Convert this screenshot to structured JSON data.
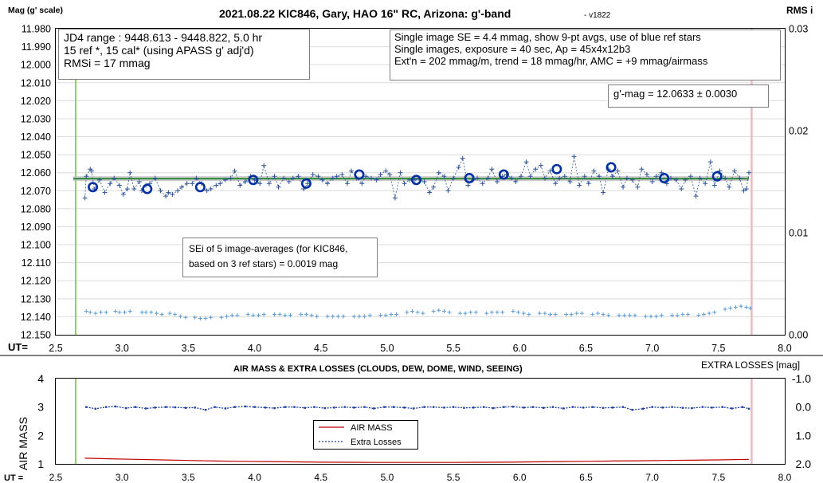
{
  "chart_data": [
    {
      "type": "scatter",
      "title": "2021.08.22 KIC846, Gary, HAO 16\" RC, Arizona: g'-band",
      "version_tag": "- v1822",
      "ylabel": "Mag (g' scale)",
      "y2label": "RMS i",
      "xlabel": "UT=",
      "xlim": [
        2.5,
        8.0
      ],
      "ylim": [
        12.15,
        11.98
      ],
      "y2lim": [
        0.0,
        0.03
      ],
      "x_ticks": [
        "2.5",
        "3.0",
        "3.5",
        "4.0",
        "4.5",
        "5.0",
        "5.5",
        "6.0",
        "6.5",
        "7.0",
        "7.5",
        "8.0"
      ],
      "y_ticks": [
        "11.980",
        "11.990",
        "12.000",
        "12.010",
        "12.020",
        "12.030",
        "12.040",
        "12.050",
        "12.060",
        "12.070",
        "12.080",
        "12.090",
        "12.100",
        "12.110",
        "12.120",
        "12.130",
        "12.140",
        "12.150"
      ],
      "y2_ticks": [
        "0.03",
        "0.02",
        "0.01",
        "0.00"
      ],
      "grid": true,
      "green_line_x": 2.65,
      "pink_line_x": 7.75,
      "fit_mag": 12.0633,
      "info_left": [
        "JD4 range : 9448.613 - 9448.822,  5.0  hr",
        "15 ref *, 15 cal* (using APASS g' adj'd)",
        "RMSi = 17 mmag"
      ],
      "info_right": [
        "Single image SE = 4.4 mmag, show  9-pt avgs, use of blue ref stars",
        "Single images, exposure = 40 sec, Ap = 45x4x12b3",
        "Ext'n = 202 mmag/m, trend = 18 mmag/hr, AMC = +9 mmag/airmass"
      ],
      "gmag_label": "g'-mag = 12.0633 ± 0.0030",
      "sei_note": [
        "SEi of 5 image-averages (for KIC846,",
        "based on 3 ref stars) = 0.0019 mag"
      ],
      "series": [
        {
          "name": "9-pt avgs",
          "x": [
            2.78,
            3.19,
            3.59,
            3.99,
            4.39,
            4.79,
            5.22,
            5.62,
            5.88,
            6.28,
            6.69,
            7.09,
            7.49
          ],
          "y": [
            12.068,
            12.069,
            12.068,
            12.064,
            12.066,
            12.061,
            12.064,
            12.063,
            12.061,
            12.058,
            12.057,
            12.063,
            12.062
          ]
        },
        {
          "name": "single images",
          "x": [
            2.72,
            2.73,
            2.76,
            2.77,
            2.79,
            2.83,
            2.87,
            2.91,
            2.94,
            2.98,
            3.01,
            3.04,
            3.06,
            3.09,
            3.13,
            3.15,
            3.18,
            3.21,
            3.25,
            3.29,
            3.33,
            3.35,
            3.38,
            3.42,
            3.45,
            3.49,
            3.53,
            3.56,
            3.6,
            3.64,
            3.67,
            3.71,
            3.74,
            3.78,
            3.82,
            3.85,
            3.89,
            3.93,
            3.97,
            4.0,
            4.04,
            4.07,
            4.11,
            4.15,
            4.18,
            4.22,
            4.26,
            4.29,
            4.33,
            4.37,
            4.4,
            4.44,
            4.48,
            4.51,
            4.55,
            4.59,
            4.62,
            4.66,
            4.7,
            4.73,
            4.77,
            4.81,
            4.84,
            4.88,
            4.92,
            4.95,
            4.99,
            5.02,
            5.06,
            5.1,
            5.13,
            5.17,
            5.21,
            5.24,
            5.28,
            5.32,
            5.35,
            5.39,
            5.43,
            5.46,
            5.5,
            5.54,
            5.57,
            5.61,
            5.65,
            5.68,
            5.72,
            5.76,
            5.79,
            5.83,
            5.87,
            5.9,
            5.94,
            5.97,
            6.01,
            6.05,
            6.08,
            6.12,
            6.16,
            6.19,
            6.23,
            6.27,
            6.3,
            6.34,
            6.38,
            6.41,
            6.45,
            6.49,
            6.52,
            6.56,
            6.6,
            6.63,
            6.67,
            6.7,
            6.74,
            6.78,
            6.81,
            6.85,
            6.89,
            6.92,
            6.96,
            7.0,
            7.03,
            7.07,
            7.11,
            7.14,
            7.18,
            7.22,
            7.25,
            7.29,
            7.33,
            7.36,
            7.4,
            7.44,
            7.47,
            7.51,
            7.55,
            7.58,
            7.62,
            7.66,
            7.69,
            7.71,
            7.73
          ],
          "y": [
            12.074,
            12.062,
            12.058,
            12.059,
            12.069,
            12.064,
            12.071,
            12.066,
            12.063,
            12.067,
            12.072,
            12.069,
            12.06,
            12.069,
            12.065,
            12.07,
            12.067,
            12.066,
            12.063,
            12.07,
            12.073,
            12.071,
            12.072,
            12.07,
            12.068,
            12.066,
            12.066,
            12.063,
            12.066,
            12.07,
            12.069,
            12.067,
            12.066,
            12.064,
            12.063,
            12.059,
            12.067,
            12.065,
            12.062,
            12.064,
            12.066,
            12.056,
            12.066,
            12.062,
            12.068,
            12.063,
            12.065,
            12.063,
            12.062,
            12.069,
            12.066,
            12.061,
            12.062,
            12.064,
            12.066,
            12.063,
            12.062,
            12.061,
            12.066,
            12.059,
            12.063,
            12.066,
            12.062,
            12.063,
            12.064,
            12.061,
            12.059,
            12.061,
            12.074,
            12.06,
            12.066,
            12.064,
            12.064,
            12.063,
            12.065,
            12.071,
            12.068,
            12.06,
            12.062,
            12.07,
            12.063,
            12.057,
            12.052,
            12.067,
            12.064,
            12.063,
            12.066,
            12.063,
            12.058,
            12.065,
            12.062,
            12.061,
            12.063,
            12.065,
            12.062,
            12.054,
            12.062,
            12.058,
            12.056,
            12.063,
            12.059,
            12.066,
            12.063,
            12.062,
            12.065,
            12.051,
            12.067,
            12.062,
            12.066,
            12.059,
            12.062,
            12.071,
            12.058,
            12.062,
            12.059,
            12.068,
            12.063,
            12.064,
            12.068,
            12.058,
            12.061,
            12.065,
            12.062,
            12.06,
            12.066,
            12.063,
            12.064,
            12.069,
            12.064,
            12.062,
            12.073,
            12.063,
            12.066,
            12.054,
            12.067,
            12.059,
            12.063,
            12.068,
            12.059,
            12.063,
            12.07,
            12.069,
            12.06
          ]
        },
        {
          "name": "RMSi",
          "axis": "right",
          "x": [
            2.73,
            2.76,
            2.8,
            2.84,
            2.88,
            2.95,
            2.98,
            3.02,
            3.06,
            3.15,
            3.18,
            3.22,
            3.26,
            3.3,
            3.36,
            3.4,
            3.44,
            3.48,
            3.55,
            3.59,
            3.63,
            3.67,
            3.75,
            3.79,
            3.83,
            3.87,
            3.95,
            3.99,
            4.03,
            4.07,
            4.15,
            4.19,
            4.23,
            4.27,
            4.35,
            4.39,
            4.43,
            4.47,
            4.55,
            4.59,
            4.63,
            4.67,
            4.75,
            4.79,
            4.83,
            4.87,
            4.95,
            4.99,
            5.03,
            5.07,
            5.15,
            5.19,
            5.23,
            5.27,
            5.35,
            5.39,
            5.43,
            5.47,
            5.55,
            5.59,
            5.63,
            5.67,
            5.75,
            5.79,
            5.83,
            5.87,
            5.95,
            5.99,
            6.03,
            6.07,
            6.15,
            6.19,
            6.23,
            6.27,
            6.35,
            6.39,
            6.43,
            6.47,
            6.55,
            6.59,
            6.63,
            6.67,
            6.75,
            6.79,
            6.83,
            6.87,
            6.95,
            6.99,
            7.03,
            7.07,
            7.15,
            7.19,
            7.23,
            7.27,
            7.35,
            7.39,
            7.43,
            7.47,
            7.55,
            7.59,
            7.63,
            7.67,
            7.71,
            7.74
          ],
          "y": [
            0.0023,
            0.0022,
            0.0021,
            0.0022,
            0.0022,
            0.0023,
            0.0022,
            0.0022,
            0.0023,
            0.0022,
            0.0022,
            0.0022,
            0.0021,
            0.002,
            0.0021,
            0.002,
            0.0018,
            0.0017,
            0.0017,
            0.0016,
            0.0016,
            0.0017,
            0.0017,
            0.0018,
            0.0019,
            0.0019,
            0.002,
            0.0019,
            0.0019,
            0.002,
            0.002,
            0.002,
            0.0019,
            0.0019,
            0.002,
            0.002,
            0.0019,
            0.0018,
            0.0018,
            0.0018,
            0.0018,
            0.0018,
            0.0018,
            0.0018,
            0.0018,
            0.0019,
            0.0019,
            0.0019,
            0.002,
            0.002,
            0.0022,
            0.0023,
            0.0022,
            0.0021,
            0.0023,
            0.0024,
            0.0023,
            0.0022,
            0.0021,
            0.0021,
            0.0022,
            0.0022,
            0.0021,
            0.0022,
            0.0022,
            0.0022,
            0.0023,
            0.0022,
            0.0021,
            0.002,
            0.0021,
            0.0021,
            0.002,
            0.002,
            0.002,
            0.002,
            0.0021,
            0.0021,
            0.002,
            0.0021,
            0.002,
            0.0019,
            0.0019,
            0.0019,
            0.0019,
            0.0019,
            0.0018,
            0.0018,
            0.0018,
            0.0019,
            0.0019,
            0.0019,
            0.002,
            0.002,
            0.0019,
            0.002,
            0.0021,
            0.0022,
            0.0025,
            0.0026,
            0.0027,
            0.0028,
            0.0027,
            0.0026
          ]
        }
      ]
    },
    {
      "type": "line",
      "title": "AIR MASS & EXTRA LOSSES (CLOUDS, DEW, DOME, WIND, SEEING)",
      "ylabel": "AIR MASS",
      "y2label": "EXTRA LOSSES [mag]",
      "xlabel": "UT =",
      "xlim": [
        2.5,
        8.0
      ],
      "ylim": [
        1,
        4
      ],
      "y2lim": [
        2.0,
        -1.0
      ],
      "x_ticks": [
        "2.5",
        "3.0",
        "3.5",
        "4.0",
        "4.5",
        "5.0",
        "5.5",
        "6.0",
        "6.5",
        "7.0",
        "7.5",
        "8.0"
      ],
      "y_ticks": [
        "4",
        "3",
        "2",
        "1"
      ],
      "y2_ticks": [
        "-1.0",
        "0.0",
        "1.0",
        "2.0"
      ],
      "grid": false,
      "green_line_x": 2.65,
      "pink_line_x": 7.75,
      "series": [
        {
          "name": "AIR MASS",
          "color": "#c00000",
          "x": [
            2.72,
            2.9,
            3.1,
            3.3,
            3.5,
            3.7,
            3.9,
            4.1,
            4.3,
            4.5,
            4.7,
            4.9,
            5.1,
            5.3,
            5.5,
            5.7,
            5.9,
            6.1,
            6.3,
            6.5,
            6.7,
            6.9,
            7.1,
            7.3,
            7.5,
            7.73
          ],
          "y": [
            1.2,
            1.18,
            1.16,
            1.14,
            1.12,
            1.1,
            1.09,
            1.08,
            1.07,
            1.06,
            1.055,
            1.05,
            1.05,
            1.05,
            1.05,
            1.055,
            1.06,
            1.07,
            1.08,
            1.09,
            1.1,
            1.11,
            1.12,
            1.13,
            1.14,
            1.16
          ]
        },
        {
          "name": "Extra Losses",
          "color": "#1f3f9f",
          "x": [
            2.73,
            2.8,
            2.88,
            2.95,
            3.03,
            3.1,
            3.18,
            3.25,
            3.33,
            3.4,
            3.48,
            3.55,
            3.63,
            3.7,
            3.78,
            3.85,
            3.93,
            4.0,
            4.08,
            4.15,
            4.23,
            4.3,
            4.38,
            4.45,
            4.53,
            4.6,
            4.68,
            4.75,
            4.83,
            4.9,
            4.98,
            5.05,
            5.13,
            5.2,
            5.28,
            5.35,
            5.43,
            5.5,
            5.58,
            5.65,
            5.73,
            5.8,
            5.88,
            5.95,
            6.03,
            6.1,
            6.18,
            6.25,
            6.33,
            6.4,
            6.48,
            6.55,
            6.63,
            6.7,
            6.78,
            6.85,
            6.93,
            7.0,
            7.08,
            7.15,
            7.23,
            7.3,
            7.38,
            7.45,
            7.53,
            7.6,
            7.68,
            7.73
          ],
          "y": [
            0.0,
            0.06,
            0.0,
            -0.02,
            0.04,
            0.0,
            0.05,
            0.02,
            0.0,
            0.01,
            0.03,
            0.02,
            0.1,
            0.0,
            0.05,
            0.0,
            -0.02,
            0.0,
            0.02,
            0.04,
            0.0,
            0.0,
            0.03,
            0.0,
            0.04,
            0.02,
            0.0,
            0.02,
            0.0,
            0.05,
            0.0,
            0.0,
            0.02,
            0.05,
            0.0,
            0.0,
            0.02,
            0.0,
            0.03,
            0.02,
            0.0,
            0.04,
            0.0,
            -0.01,
            0.02,
            0.0,
            0.03,
            0.0,
            0.05,
            0.0,
            0.02,
            0.0,
            0.03,
            0.02,
            0.0,
            0.1,
            0.06,
            0.0,
            0.02,
            0.0,
            0.03,
            0.04,
            0.0,
            0.02,
            0.0,
            0.05,
            0.0,
            0.06
          ]
        }
      ]
    }
  ]
}
